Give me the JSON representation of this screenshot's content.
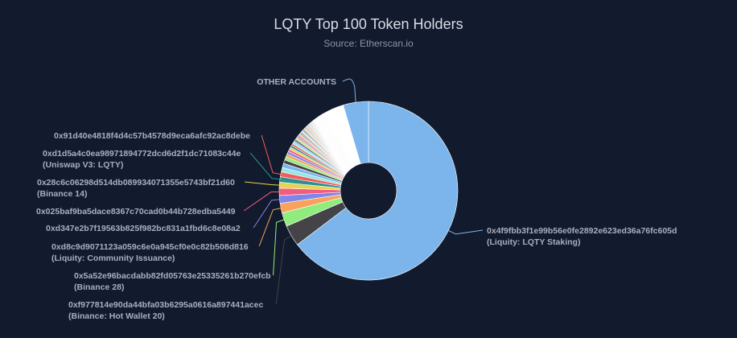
{
  "chart_data": {
    "type": "pie",
    "title": "LQTY Top 100 Token Holders",
    "subtitle": "Source: Etherscan.io",
    "slices": [
      {
        "name": "0x4f9fbb3f1e99b56e0fe2892e623ed36a76fc605d",
        "sub": "(Liquity: LQTY Staking)",
        "value": 59.5,
        "color": "#7cb5ec"
      },
      {
        "name": "0xf977814e90da44bfa03b6295a0616a897441acec",
        "sub": "(Binance: Hot Wallet 20)",
        "value": 3.5,
        "color": "#434348"
      },
      {
        "name": "0x5a52e96bacdabb82fd05763e25335261b270efcb",
        "sub": "(Binance 28)",
        "value": 2.3,
        "color": "#90ed7d"
      },
      {
        "name": "0xd8c9d9071123a059c6e0a945cf0e0c82b508d816",
        "sub": "(Liquity: Community Issuance)",
        "value": 1.6,
        "color": "#f7a35c"
      },
      {
        "name": "0xd347e2b7f19563b825f982bc831a1fbd6c8e08a2",
        "sub": "",
        "value": 1.3,
        "color": "#8085e9"
      },
      {
        "name": "0x025baf9ba5dace8367c70cad0b44b728edba5449",
        "sub": "",
        "value": 1.2,
        "color": "#f15c80"
      },
      {
        "name": "0x28c6c06298d514db089934071355e5743bf21d60",
        "sub": "(Binance 14)",
        "value": 1.0,
        "color": "#e4d354"
      },
      {
        "name": "0xd1d5a4c0ea98971894772dcd6d2f1dc71083c44e",
        "sub": "(Uniswap V3: LQTY)",
        "value": 0.9,
        "color": "#2b908f"
      },
      {
        "name": "0x91d40e4818f4d4c57b4578d9eca6afc92ac8debe",
        "sub": "",
        "value": 0.8,
        "color": "#f45b5b"
      },
      {
        "name": "",
        "sub": "",
        "value": 0.75,
        "color": "#91e8e1"
      },
      {
        "name": "",
        "sub": "",
        "value": 0.7,
        "color": "#7cb5ec"
      },
      {
        "name": "",
        "sub": "",
        "value": 0.6,
        "color": "#434348"
      },
      {
        "name": "",
        "sub": "",
        "value": 0.55,
        "color": "#90ed7d"
      },
      {
        "name": "",
        "sub": "",
        "value": 0.5,
        "color": "#f7a35c"
      },
      {
        "name": "",
        "sub": "",
        "value": 0.45,
        "color": "#8085e9"
      },
      {
        "name": "",
        "sub": "",
        "value": 0.4,
        "color": "#f15c80"
      },
      {
        "name": "",
        "sub": "",
        "value": 0.38,
        "color": "#e4d354"
      },
      {
        "name": "",
        "sub": "",
        "value": 0.35,
        "color": "#2b908f"
      },
      {
        "name": "",
        "sub": "",
        "value": 0.33,
        "color": "#f45b5b"
      },
      {
        "name": "",
        "sub": "",
        "value": 0.3,
        "color": "#91e8e1"
      },
      {
        "name": "",
        "sub": "",
        "value": 0.28,
        "color": "#7cb5ec"
      },
      {
        "name": "",
        "sub": "",
        "value": 0.26,
        "color": "#434348"
      },
      {
        "name": "",
        "sub": "",
        "value": 0.25,
        "color": "#90ed7d"
      },
      {
        "name": "",
        "sub": "",
        "value": 0.24,
        "color": "#f7a35c"
      },
      {
        "name": "",
        "sub": "",
        "value": 0.23,
        "color": "#8085e9"
      },
      {
        "name": "",
        "sub": "",
        "value": 0.22,
        "color": "#f15c80"
      },
      {
        "name": "",
        "sub": "",
        "value": 0.21,
        "color": "#e4d354"
      },
      {
        "name": "",
        "sub": "",
        "value": 0.2,
        "color": "#2b908f"
      },
      {
        "name": "",
        "sub": "",
        "value": 0.2,
        "color": "#f45b5b"
      },
      {
        "name": "",
        "sub": "",
        "value": 0.19,
        "color": "#91e8e1"
      },
      {
        "name": "",
        "sub": "",
        "value": 0.18,
        "color": "#7cb5ec"
      },
      {
        "name": "",
        "sub": "",
        "value": 0.18,
        "color": "#434348"
      },
      {
        "name": "",
        "sub": "",
        "value": 0.17,
        "color": "#90ed7d"
      },
      {
        "name": "",
        "sub": "",
        "value": 0.16,
        "color": "#f7a35c"
      },
      {
        "name": "",
        "sub": "",
        "value": 0.16,
        "color": "#8085e9"
      },
      {
        "name": "",
        "sub": "",
        "value": 0.15,
        "color": "#f15c80"
      },
      {
        "name": "",
        "sub": "",
        "value": 0.15,
        "color": "#e4d354"
      },
      {
        "name": "",
        "sub": "",
        "value": 0.14,
        "color": "#2b908f"
      },
      {
        "name": "",
        "sub": "",
        "value": 0.14,
        "color": "#f45b5b"
      },
      {
        "name": "",
        "sub": "",
        "value": 0.13,
        "color": "#91e8e1"
      },
      {
        "name": "",
        "sub": "",
        "value": 0.13,
        "color": "#7cb5ec"
      },
      {
        "name": "",
        "sub": "",
        "value": 0.12,
        "color": "#434348"
      },
      {
        "name": "",
        "sub": "",
        "value": 0.12,
        "color": "#90ed7d"
      },
      {
        "name": "",
        "sub": "",
        "value": 0.11,
        "color": "#f7a35c"
      },
      {
        "name": "",
        "sub": "",
        "value": 0.11,
        "color": "#8085e9"
      },
      {
        "name": "",
        "sub": "",
        "value": 0.1,
        "color": "#f15c80"
      },
      {
        "name": "",
        "sub": "",
        "value": 0.1,
        "color": "#e4d354"
      },
      {
        "name": "",
        "sub": "",
        "value": 0.1,
        "color": "#2b908f"
      },
      {
        "name": "",
        "sub": "",
        "value": 0.09,
        "color": "#f45b5b"
      },
      {
        "name": "",
        "sub": "",
        "value": 0.09,
        "color": "#91e8e1"
      },
      {
        "name": "",
        "sub": "",
        "value": 0.09,
        "color": "#7cb5ec"
      },
      {
        "name": "",
        "sub": "",
        "value": 0.08,
        "color": "#434348"
      },
      {
        "name": "",
        "sub": "",
        "value": 0.08,
        "color": "#90ed7d"
      },
      {
        "name": "",
        "sub": "",
        "value": 0.08,
        "color": "#f7a35c"
      },
      {
        "name": "",
        "sub": "",
        "value": 0.07,
        "color": "#8085e9"
      },
      {
        "name": "",
        "sub": "",
        "value": 0.07,
        "color": "#f15c80"
      },
      {
        "name": "",
        "sub": "",
        "value": 0.07,
        "color": "#e4d354"
      },
      {
        "name": "",
        "sub": "",
        "value": 0.07,
        "color": "#2b908f"
      },
      {
        "name": "",
        "sub": "",
        "value": 0.06,
        "color": "#f45b5b"
      },
      {
        "name": "",
        "sub": "",
        "value": 0.06,
        "color": "#91e8e1"
      },
      {
        "name": "",
        "sub": "",
        "value": 0.06,
        "color": "#7cb5ec"
      },
      {
        "name": "",
        "sub": "",
        "value": 0.06,
        "color": "#434348"
      },
      {
        "name": "",
        "sub": "",
        "value": 0.05,
        "color": "#90ed7d"
      },
      {
        "name": "",
        "sub": "",
        "value": 0.05,
        "color": "#f7a35c"
      },
      {
        "name": "",
        "sub": "",
        "value": 0.05,
        "color": "#8085e9"
      },
      {
        "name": "",
        "sub": "",
        "value": 0.05,
        "color": "#f15c80"
      },
      {
        "name": "",
        "sub": "",
        "value": 0.05,
        "color": "#e4d354"
      },
      {
        "name": "",
        "sub": "",
        "value": 0.04,
        "color": "#2b908f"
      },
      {
        "name": "",
        "sub": "",
        "value": 0.04,
        "color": "#f45b5b"
      },
      {
        "name": "",
        "sub": "",
        "value": 0.04,
        "color": "#91e8e1"
      },
      {
        "name": "",
        "sub": "",
        "value": 0.04,
        "color": "#7cb5ec"
      },
      {
        "name": "",
        "sub": "",
        "value": 0.04,
        "color": "#434348"
      },
      {
        "name": "",
        "sub": "",
        "value": 0.04,
        "color": "#90ed7d"
      },
      {
        "name": "",
        "sub": "",
        "value": 0.03,
        "color": "#f7a35c"
      },
      {
        "name": "",
        "sub": "",
        "value": 0.03,
        "color": "#8085e9"
      },
      {
        "name": "",
        "sub": "",
        "value": 0.03,
        "color": "#f15c80"
      },
      {
        "name": "",
        "sub": "",
        "value": 0.03,
        "color": "#e4d354"
      },
      {
        "name": "",
        "sub": "",
        "value": 0.03,
        "color": "#2b908f"
      },
      {
        "name": "",
        "sub": "",
        "value": 0.03,
        "color": "#f45b5b"
      },
      {
        "name": "",
        "sub": "",
        "value": 0.03,
        "color": "#91e8e1"
      },
      {
        "name": "",
        "sub": "",
        "value": 0.03,
        "color": "#7cb5ec"
      },
      {
        "name": "",
        "sub": "",
        "value": 0.02,
        "color": "#434348"
      },
      {
        "name": "",
        "sub": "",
        "value": 0.02,
        "color": "#90ed7d"
      },
      {
        "name": "",
        "sub": "",
        "value": 0.02,
        "color": "#f7a35c"
      },
      {
        "name": "",
        "sub": "",
        "value": 0.02,
        "color": "#8085e9"
      },
      {
        "name": "",
        "sub": "",
        "value": 0.02,
        "color": "#f15c80"
      },
      {
        "name": "",
        "sub": "",
        "value": 0.02,
        "color": "#e4d354"
      },
      {
        "name": "",
        "sub": "",
        "value": 0.02,
        "color": "#2b908f"
      },
      {
        "name": "",
        "sub": "",
        "value": 0.02,
        "color": "#f45b5b"
      },
      {
        "name": "",
        "sub": "",
        "value": 0.02,
        "color": "#91e8e1"
      },
      {
        "name": "",
        "sub": "",
        "value": 0.02,
        "color": "#7cb5ec"
      },
      {
        "name": "",
        "sub": "",
        "value": 0.02,
        "color": "#434348"
      },
      {
        "name": "",
        "sub": "",
        "value": 0.02,
        "color": "#90ed7d"
      },
      {
        "name": "",
        "sub": "",
        "value": 0.02,
        "color": "#f7a35c"
      },
      {
        "name": "",
        "sub": "",
        "value": 0.02,
        "color": "#8085e9"
      },
      {
        "name": "",
        "sub": "",
        "value": 0.02,
        "color": "#f15c80"
      },
      {
        "name": "",
        "sub": "",
        "value": 0.02,
        "color": "#e4d354"
      },
      {
        "name": "",
        "sub": "",
        "value": 0.02,
        "color": "#2b908f"
      },
      {
        "name": "",
        "sub": "",
        "value": 0.02,
        "color": "#f45b5b"
      },
      {
        "name": "",
        "sub": "",
        "value": 0.02,
        "color": "#91e8e1"
      },
      {
        "name": "",
        "sub": "",
        "value": 3.5,
        "color": "#ffffff"
      },
      {
        "name": "OTHER ACCOUNTS",
        "sub": "",
        "value": 4.2,
        "color": "#7cb5ec"
      }
    ]
  }
}
